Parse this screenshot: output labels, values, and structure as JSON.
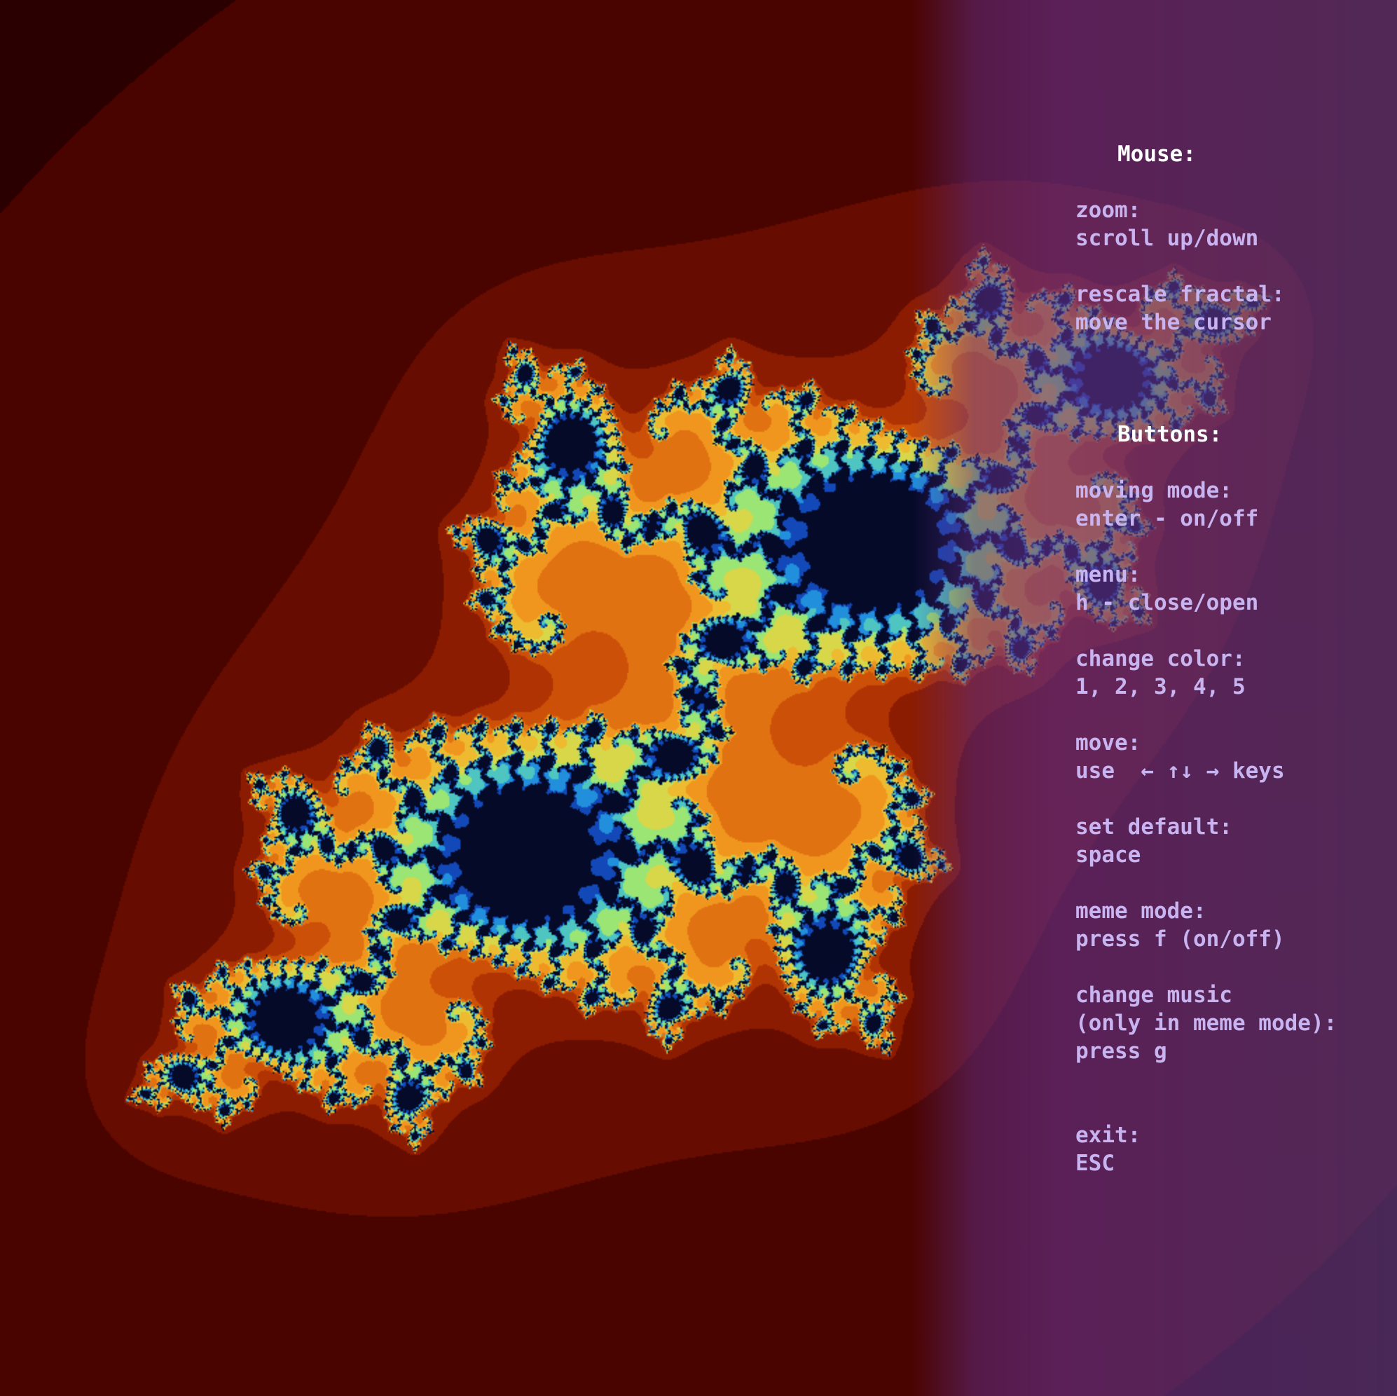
{
  "menu": {
    "mouse_heading": "Mouse:",
    "zoom_label": "zoom:",
    "zoom_value": "scroll up/down",
    "rescale_label": "rescale fractal:",
    "rescale_value": "move the cursor",
    "buttons_heading": "Buttons:",
    "moving_label": "moving mode:",
    "moving_value": "enter - on/off",
    "menu_label": "menu:",
    "menu_value": "h - close/open",
    "color_label": "change color:",
    "color_value": "1, 2, 3, 4, 5",
    "move_label": "move:",
    "move_value_prefix": "use  ",
    "move_arrows": "← ↑↓ →",
    "move_value_suffix": " keys",
    "default_label": "set default:",
    "default_value": "space",
    "meme_label": "meme mode:",
    "meme_value": "press f (on/off)",
    "music_label": "change music",
    "music_note": "(only in meme mode):",
    "music_value": "press g",
    "exit_label": "exit:",
    "exit_value": "ESC"
  },
  "colors": {
    "menu_text": "#c8b4f0",
    "menu_heading": "#ffffff",
    "background": "#2a0000"
  },
  "fractal": {
    "type": "julia",
    "c_re": -0.745,
    "c_im": 0.186
  }
}
